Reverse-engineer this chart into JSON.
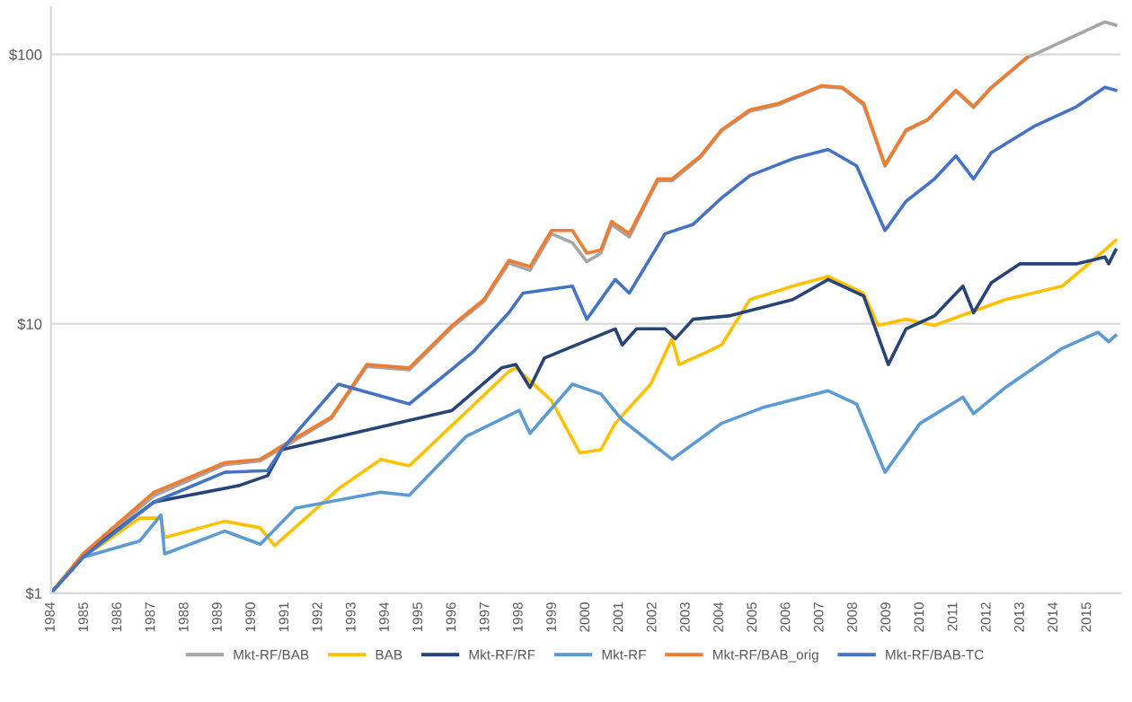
{
  "chart_data": {
    "type": "line",
    "log": "y",
    "grid": "y",
    "legend": "bottom",
    "marker": "none",
    "line_style": "solid",
    "xlim": [
      1984,
      2016
    ],
    "xticks": [
      1984,
      1985,
      1986,
      1987,
      1988,
      1989,
      1990,
      1991,
      1992,
      1993,
      1994,
      1995,
      1996,
      1997,
      1998,
      1999,
      2000,
      2001,
      2002,
      2003,
      2004,
      2005,
      2006,
      2007,
      2008,
      2009,
      2010,
      2011,
      2012,
      2013,
      2014,
      2015
    ],
    "ylim": [
      1,
      150
    ],
    "yticks": [
      {
        "value": 1,
        "label": "$1"
      },
      {
        "value": 10,
        "label": "$10"
      },
      {
        "value": 100,
        "label": "$100"
      }
    ],
    "series": [
      {
        "name": "Mkt-RF/BAB",
        "color": "#a5a5a5",
        "x": [
          1984,
          1984.96,
          1987.08,
          1989.2,
          1990.26,
          1990.9,
          1992.39,
          1993.45,
          1994.72,
          1996.0,
          1996.95,
          1997.7,
          1998.33,
          1998.97,
          1999.6,
          2000.03,
          2000.45,
          2000.77,
          2001.3,
          2002.15,
          2002.58,
          2003.43,
          2004.06,
          2004.91,
          2005.76,
          2007.04,
          2007.67,
          2008.31,
          2008.95,
          2009.58,
          2010.22,
          2011.07,
          2011.6,
          2012.13,
          2013.19,
          2014.25,
          2015.53,
          2015.85
        ],
        "values": [
          1,
          1.38,
          2.3,
          3.0,
          3.1,
          3.45,
          4.45,
          6.95,
          6.75,
          9.7,
          12.1,
          16.8,
          15.8,
          21.6,
          20,
          17,
          18.3,
          23.4,
          21,
          34,
          34,
          41.5,
          52,
          61.5,
          65,
          76,
          75,
          65,
          38.5,
          52,
          57,
          73,
          63.5,
          75,
          97,
          111.5,
          132,
          128.5
        ]
      },
      {
        "name": "BAB",
        "color": "#ffc000",
        "x": [
          1984,
          1984.96,
          1986.65,
          1987.29,
          1987.4,
          1989.2,
          1990.26,
          1990.69,
          1992.6,
          1993.87,
          1994.72,
          1997.7,
          1997.91,
          1998.97,
          1999.82,
          2000.45,
          2000.88,
          2001.94,
          2002.58,
          2002.79,
          2003.64,
          2004.06,
          2004.91,
          2006.19,
          2007.25,
          2008.31,
          2008.74,
          2009.58,
          2010.43,
          2012.55,
          2014.25,
          2015.53,
          2015.85
        ],
        "values": [
          1,
          1.36,
          1.9,
          1.9,
          1.61,
          1.85,
          1.75,
          1.5,
          2.44,
          3.14,
          2.97,
          6.66,
          6.86,
          5.19,
          3.32,
          3.41,
          4.27,
          5.97,
          8.8,
          7.06,
          7.87,
          8.35,
          12.3,
          13.8,
          15.0,
          13.0,
          9.86,
          10.4,
          9.86,
          12.3,
          13.8,
          18.8,
          20.4
        ]
      },
      {
        "name": "Mkt-RF/RF",
        "color": "#264478",
        "x": [
          1984,
          1984.96,
          1987.08,
          1989.63,
          1990.48,
          1990.9,
          1996.0,
          1997.48,
          1997.91,
          1998.33,
          1998.76,
          2000.88,
          2001.09,
          2001.52,
          2002.37,
          2002.68,
          2003.21,
          2004.28,
          2006.19,
          2007.25,
          2008.31,
          2009.05,
          2009.58,
          2010.43,
          2011.28,
          2011.6,
          2012.13,
          2012.98,
          2014.68,
          2015.53,
          2015.64,
          2015.85
        ],
        "values": [
          1,
          1.38,
          2.18,
          2.51,
          2.73,
          3.41,
          4.77,
          6.86,
          7.06,
          5.8,
          7.46,
          9.58,
          8.35,
          9.58,
          9.58,
          8.8,
          10.4,
          10.7,
          12.3,
          14.6,
          12.7,
          7.06,
          9.58,
          10.7,
          13.8,
          11.0,
          14.2,
          16.7,
          16.7,
          17.7,
          16.7,
          18.8
        ]
      },
      {
        "name": "Mkt-RF",
        "color": "#5b9bd5",
        "x": [
          1984,
          1984.96,
          1986.65,
          1987.29,
          1987.4,
          1989.2,
          1990.26,
          1991.32,
          1993.87,
          1994.72,
          1996.42,
          1998.01,
          1998.33,
          1999.6,
          2000.45,
          2001.09,
          2002.58,
          2004.06,
          2005.34,
          2007.25,
          2008.1,
          2008.95,
          2010.0,
          2011.28,
          2011.6,
          2012.55,
          2014.25,
          2015.32,
          2015.64,
          2015.85
        ],
        "values": [
          1,
          1.36,
          1.56,
          1.95,
          1.4,
          1.7,
          1.52,
          2.07,
          2.37,
          2.31,
          3.82,
          4.77,
          3.92,
          5.97,
          5.49,
          4.39,
          3.14,
          4.27,
          4.91,
          5.64,
          5.04,
          2.81,
          4.27,
          5.34,
          4.64,
          5.8,
          8.11,
          9.31,
          8.58,
          9.05
        ]
      },
      {
        "name": "Mkt-RF/BAB_orig",
        "color": "#ed7d31",
        "x": [
          1984,
          1984.96,
          1987.08,
          1989.2,
          1990.26,
          1990.9,
          1992.39,
          1993.45,
          1994.72,
          1996.0,
          1996.95,
          1997.7,
          1998.33,
          1998.97,
          1999.6,
          2000.03,
          2000.45,
          2000.77,
          2001.3,
          2002.15,
          2002.58,
          2003.43,
          2004.06,
          2004.91,
          2005.76,
          2007.04,
          2007.67,
          2008.31,
          2008.95,
          2009.58,
          2010.22,
          2011.07,
          2011.6,
          2012.13,
          2013.19
        ],
        "values": [
          1,
          1.4,
          2.37,
          3.05,
          3.14,
          3.51,
          4.51,
          7.06,
          6.86,
          9.86,
          12.3,
          17.2,
          16.3,
          22.2,
          22.2,
          18.3,
          18.8,
          24.0,
          21.6,
          34.5,
          34.5,
          42.0,
          52.5,
          62.3,
          65.8,
          76.5,
          75.5,
          65.8,
          38.9,
          52.5,
          57.2,
          73.6,
          64.0,
          75.5,
          97.5
        ]
      },
      {
        "name": "Mkt-RF/BAB-TC",
        "color": "#4472c4",
        "x": [
          1984,
          1984.96,
          1987.08,
          1989.2,
          1990.48,
          1990.9,
          1992.6,
          1994.72,
          1996.63,
          1997.7,
          1998.12,
          1999.6,
          2000.03,
          2000.88,
          2001.3,
          2002.37,
          2003.21,
          2004.06,
          2004.91,
          2006.19,
          2007.25,
          2008.1,
          2008.95,
          2009.58,
          2010.43,
          2011.07,
          2011.6,
          2012.13,
          2013.4,
          2014.68,
          2015.53,
          2015.85
        ],
        "values": [
          1,
          1.36,
          2.18,
          2.81,
          2.85,
          3.41,
          5.97,
          5.04,
          7.87,
          11.0,
          13.0,
          13.8,
          10.4,
          14.6,
          13.0,
          21.6,
          23.4,
          29.3,
          35.5,
          41.0,
          44.4,
          38.6,
          22.2,
          28.5,
          34.5,
          42.0,
          34.5,
          43.2,
          54.0,
          64.0,
          75.5,
          73.6
        ]
      }
    ]
  }
}
